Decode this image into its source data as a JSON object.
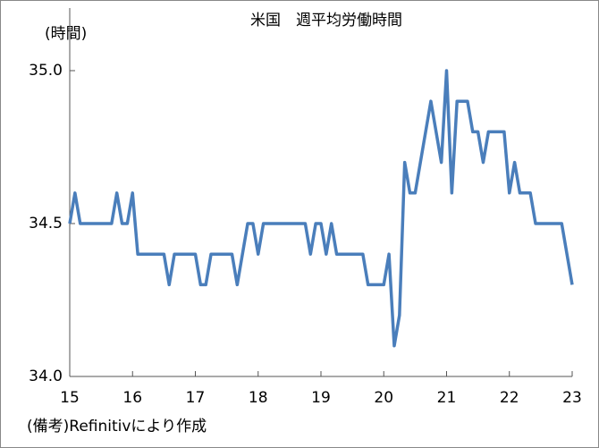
{
  "chart_data": {
    "type": "line",
    "title": "米国　週平均労働時間",
    "y_label": "(時間)",
    "note": "(備考)Refinitivにより作成",
    "categories": [
      "15",
      null,
      null,
      null,
      null,
      null,
      null,
      null,
      null,
      null,
      null,
      null,
      "16",
      null,
      null,
      null,
      null,
      null,
      null,
      null,
      null,
      null,
      null,
      null,
      "17",
      null,
      null,
      null,
      null,
      null,
      null,
      null,
      null,
      null,
      null,
      null,
      "18",
      null,
      null,
      null,
      null,
      null,
      null,
      null,
      null,
      null,
      null,
      null,
      "19",
      null,
      null,
      null,
      null,
      null,
      null,
      null,
      null,
      null,
      null,
      null,
      "20",
      null,
      null,
      null,
      null,
      null,
      null,
      null,
      null,
      null,
      null,
      null,
      "21",
      null,
      null,
      null,
      null,
      null,
      null,
      null,
      null,
      null,
      null,
      null,
      "22",
      null,
      null,
      null,
      null,
      null,
      null,
      null,
      null,
      null,
      null,
      null,
      "23"
    ],
    "series": [
      {
        "color": "#4a7ebb",
        "values": [
          34.5,
          34.6,
          34.5,
          34.5,
          34.5,
          34.5,
          34.5,
          34.5,
          34.5,
          34.6,
          34.5,
          34.5,
          34.6,
          34.4,
          34.4,
          34.4,
          34.4,
          34.4,
          34.4,
          34.3,
          34.4,
          34.4,
          34.4,
          34.4,
          34.4,
          34.3,
          34.3,
          34.4,
          34.4,
          34.4,
          34.4,
          34.4,
          34.3,
          34.4,
          34.5,
          34.5,
          34.4,
          34.5,
          34.5,
          34.5,
          34.5,
          34.5,
          34.5,
          34.5,
          34.5,
          34.5,
          34.4,
          34.5,
          34.5,
          34.4,
          34.5,
          34.4,
          34.4,
          34.4,
          34.4,
          34.4,
          34.4,
          34.3,
          34.3,
          34.3,
          34.3,
          34.4,
          34.1,
          34.2,
          34.7,
          34.6,
          34.6,
          34.7,
          34.8,
          34.9,
          34.8,
          34.7,
          35.0,
          34.6,
          34.9,
          34.9,
          34.9,
          34.8,
          34.8,
          34.7,
          34.8,
          34.8,
          34.8,
          34.8,
          34.6,
          34.7,
          34.6,
          34.6,
          34.6,
          34.5,
          34.5,
          34.5,
          34.5,
          34.5,
          34.5,
          34.4,
          34.3
        ]
      }
    ],
    "ylim": [
      34.0,
      35.0
    ],
    "yticks": [
      {
        "value": 34.0,
        "label": "34.0"
      },
      {
        "value": 34.5,
        "label": "34.5"
      },
      {
        "value": 35.0,
        "label": "35.0"
      }
    ]
  }
}
